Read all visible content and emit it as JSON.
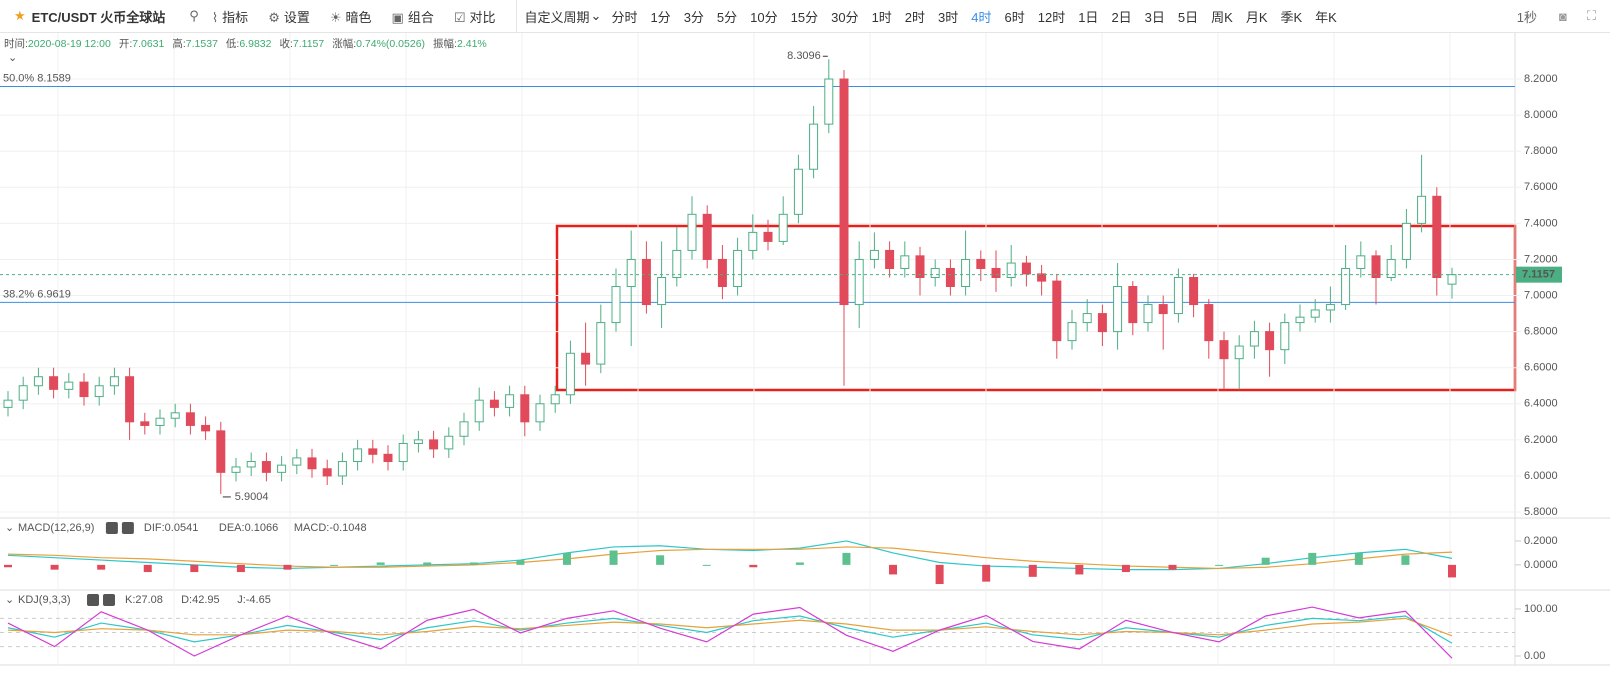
{
  "toolbar": {
    "symbol": "ETC/USDT 火币全球站",
    "tools": [
      "指标",
      "设置",
      "暗色",
      "组合",
      "对比"
    ],
    "custom": "自定义周期",
    "periods": [
      "分时",
      "1分",
      "3分",
      "5分",
      "10分",
      "15分",
      "30分",
      "1时",
      "2时",
      "3时",
      "4时",
      "6时",
      "12时",
      "1日",
      "2日",
      "3日",
      "5日",
      "周K",
      "月K",
      "季K",
      "年K"
    ],
    "active_period": 10,
    "refresh": "1秒"
  },
  "info": [
    {
      "label": "时间:",
      "value": "2020-08-19 12:00"
    },
    {
      "label": "开:",
      "value": "7.0631"
    },
    {
      "label": "高:",
      "value": "7.1537"
    },
    {
      "label": "低:",
      "value": "6.9832"
    },
    {
      "label": "收:",
      "value": "7.1157"
    },
    {
      "label": "涨幅:",
      "value": "0.74%(0.0526)"
    },
    {
      "label": "振幅:",
      "value": "2.41%"
    }
  ],
  "chart_data": [
    {
      "type": "candlestick",
      "up_color": "#4caf84",
      "down_color": "#e04a5a",
      "ylim": [
        5.767,
        8.444
      ],
      "yticks": [
        {
          "value": 5.8,
          "label": "5.8000"
        },
        {
          "value": 6.0,
          "label": "6.0000"
        },
        {
          "value": 6.2,
          "label": "6.2000"
        },
        {
          "value": 6.4,
          "label": "6.4000"
        },
        {
          "value": 6.6,
          "label": "6.6000"
        },
        {
          "value": 6.8,
          "label": "6.8000"
        },
        {
          "value": 7.0,
          "label": "7.0000"
        },
        {
          "value": 7.2,
          "label": "7.2000"
        },
        {
          "value": 7.4,
          "label": "7.4000"
        },
        {
          "value": 7.6,
          "label": "7.6000"
        },
        {
          "value": 7.8,
          "label": "7.8000"
        },
        {
          "value": 8.0,
          "label": "8.0000"
        },
        {
          "value": 8.2,
          "label": "8.2000"
        }
      ],
      "grid": true,
      "levels": [
        {
          "label": "50.0% 8.1589",
          "value": 8.1589,
          "color": "#3a8ee6"
        },
        {
          "label": "38.2% 6.9619",
          "value": 6.9619,
          "color": "#3a8ee6"
        }
      ],
      "open": [
        6.38,
        6.42,
        6.5,
        6.55,
        6.48,
        6.52,
        6.44,
        6.5,
        6.55,
        6.3,
        6.28,
        6.32,
        6.35,
        6.28,
        6.25,
        6.02,
        6.05,
        6.08,
        6.02,
        6.06,
        6.1,
        6.04,
        6.0,
        6.08,
        6.15,
        6.12,
        6.08,
        6.18,
        6.2,
        6.15,
        6.22,
        6.3,
        6.42,
        6.38,
        6.45,
        6.3,
        6.4,
        6.45,
        6.68,
        6.62,
        6.85,
        7.05,
        7.2,
        6.95,
        7.1,
        7.25,
        7.45,
        7.2,
        7.05,
        7.25,
        7.35,
        7.3,
        7.45,
        7.7,
        7.95,
        8.2,
        6.95,
        7.2,
        7.25,
        7.15,
        7.22,
        7.1,
        7.15,
        7.05,
        7.2,
        7.15,
        7.1,
        7.18,
        7.12,
        7.08,
        6.75,
        6.85,
        6.9,
        6.8,
        7.05,
        6.85,
        6.95,
        6.9,
        7.1,
        6.95,
        6.75,
        6.65,
        6.72,
        6.8,
        6.7,
        6.85,
        6.88,
        6.92,
        6.95,
        7.15,
        7.22,
        7.1,
        7.2,
        7.4,
        7.55,
        7.0631
      ],
      "high": [
        6.47,
        6.55,
        6.6,
        6.6,
        6.57,
        6.57,
        6.55,
        6.6,
        6.6,
        6.35,
        6.37,
        6.4,
        6.4,
        6.33,
        6.3,
        6.1,
        6.13,
        6.13,
        6.11,
        6.15,
        6.15,
        6.09,
        6.13,
        6.2,
        6.2,
        6.17,
        6.23,
        6.25,
        6.25,
        6.27,
        6.35,
        6.49,
        6.47,
        6.5,
        6.5,
        6.45,
        6.5,
        6.75,
        6.85,
        6.95,
        7.15,
        7.36,
        7.3,
        7.3,
        7.38,
        7.55,
        7.5,
        7.28,
        7.32,
        7.45,
        7.42,
        7.55,
        7.78,
        8.05,
        8.3096,
        8.25,
        7.3,
        7.35,
        7.3,
        7.3,
        7.27,
        7.2,
        7.2,
        7.36,
        7.25,
        7.25,
        7.28,
        7.22,
        7.17,
        7.12,
        6.92,
        6.98,
        6.95,
        7.18,
        7.08,
        7.0,
        7.0,
        7.15,
        7.12,
        6.98,
        6.8,
        6.78,
        6.86,
        6.85,
        6.9,
        6.95,
        6.98,
        7.05,
        7.28,
        7.3,
        7.25,
        7.28,
        7.48,
        7.78,
        7.6,
        7.1537
      ],
      "low": [
        6.33,
        6.37,
        6.45,
        6.43,
        6.43,
        6.39,
        6.39,
        6.45,
        6.2,
        6.23,
        6.23,
        6.27,
        6.23,
        6.2,
        5.9004,
        5.97,
        6.0,
        5.97,
        5.97,
        6.01,
        5.99,
        5.95,
        5.95,
        6.03,
        6.07,
        6.03,
        6.03,
        6.13,
        6.1,
        6.1,
        6.17,
        6.25,
        6.33,
        6.33,
        6.22,
        6.25,
        6.35,
        6.4,
        6.5,
        6.57,
        6.8,
        6.72,
        6.9,
        6.82,
        7.05,
        7.2,
        7.15,
        6.98,
        7.0,
        7.2,
        7.25,
        7.28,
        7.4,
        7.65,
        7.9,
        6.5,
        6.82,
        7.15,
        7.1,
        7.1,
        7.0,
        7.05,
        7.0,
        7.0,
        7.08,
        7.02,
        7.05,
        7.05,
        7.0,
        6.65,
        6.7,
        6.8,
        6.72,
        6.7,
        6.78,
        6.8,
        6.7,
        6.85,
        6.88,
        6.65,
        6.48,
        6.48,
        6.65,
        6.55,
        6.62,
        6.8,
        6.85,
        6.85,
        6.92,
        7.1,
        6.95,
        7.08,
        7.15,
        7.35,
        7.0,
        6.9832
      ],
      "close": [
        6.42,
        6.5,
        6.55,
        6.48,
        6.52,
        6.44,
        6.5,
        6.55,
        6.3,
        6.28,
        6.32,
        6.35,
        6.28,
        6.25,
        6.02,
        6.05,
        6.08,
        6.02,
        6.06,
        6.1,
        6.04,
        6.0,
        6.08,
        6.15,
        6.12,
        6.08,
        6.18,
        6.2,
        6.15,
        6.22,
        6.3,
        6.42,
        6.38,
        6.45,
        6.3,
        6.4,
        6.45,
        6.68,
        6.62,
        6.85,
        7.05,
        7.2,
        6.95,
        7.1,
        7.25,
        7.45,
        7.2,
        7.05,
        7.25,
        7.35,
        7.3,
        7.45,
        7.7,
        7.95,
        8.2,
        6.95,
        7.2,
        7.25,
        7.15,
        7.22,
        7.1,
        7.15,
        7.05,
        7.2,
        7.15,
        7.1,
        7.18,
        7.12,
        7.08,
        6.75,
        6.85,
        6.9,
        6.8,
        7.05,
        6.85,
        6.95,
        6.9,
        7.1,
        6.95,
        6.75,
        6.65,
        6.72,
        6.8,
        6.7,
        6.85,
        6.88,
        6.92,
        6.95,
        7.15,
        7.22,
        7.1,
        7.2,
        7.4,
        7.55,
        7.1,
        7.1157
      ]
    },
    {
      "type": "macd",
      "title": "MACD(12,26,9)",
      "ylim": [
        -0.21,
        0.375
      ],
      "yticks": [
        {
          "value": 0.0,
          "label": "0.0000"
        },
        {
          "value": 0.2,
          "label": "0.2000"
        }
      ],
      "series": [
        {
          "name": "DIF:0.0541",
          "color": "#2ec7c9",
          "values": [
            0.08,
            0.06,
            0.04,
            0.02,
            0.0,
            -0.02,
            -0.03,
            -0.02,
            -0.01,
            0.0,
            0.01,
            0.04,
            0.1,
            0.15,
            0.16,
            0.13,
            0.12,
            0.14,
            0.2,
            0.1,
            0.02,
            -0.01,
            -0.02,
            -0.03,
            -0.04,
            -0.04,
            -0.03,
            0.01,
            0.06,
            0.1,
            0.13,
            0.0541
          ]
        },
        {
          "name": "DEA:0.1066",
          "color": "#e6a23c",
          "values": [
            0.09,
            0.08,
            0.06,
            0.05,
            0.03,
            0.01,
            -0.01,
            -0.02,
            -0.02,
            -0.01,
            0.0,
            0.02,
            0.05,
            0.09,
            0.12,
            0.13,
            0.13,
            0.13,
            0.15,
            0.14,
            0.1,
            0.06,
            0.03,
            0.01,
            -0.01,
            -0.02,
            -0.03,
            -0.02,
            0.01,
            0.05,
            0.09,
            0.1066
          ]
        },
        {
          "name": "MACD:-0.1048",
          "color": "#e05c8f",
          "style": "bar",
          "values": [
            -0.02,
            -0.04,
            -0.04,
            -0.06,
            -0.06,
            -0.06,
            -0.04,
            0.0,
            0.02,
            0.02,
            0.02,
            0.04,
            0.1,
            0.12,
            0.08,
            0.0,
            -0.02,
            0.02,
            0.1,
            -0.08,
            -0.16,
            -0.14,
            -0.1,
            -0.08,
            -0.06,
            -0.04,
            0.0,
            0.06,
            0.1,
            0.1,
            0.08,
            -0.1048
          ]
        }
      ]
    },
    {
      "type": "line",
      "title": "KDJ(9,3,3)",
      "ylim": [
        -17,
        136
      ],
      "yticks": [
        {
          "value": 0,
          "label": "0.00"
        },
        {
          "value": 100,
          "label": "100.00"
        }
      ],
      "dashed_levels": [
        20,
        50,
        80
      ],
      "series": [
        {
          "name": "K:27.08",
          "color": "#2ec7c9",
          "values": [
            60,
            40,
            70,
            55,
            30,
            45,
            65,
            50,
            35,
            60,
            75,
            55,
            70,
            80,
            65,
            50,
            75,
            85,
            60,
            40,
            55,
            70,
            45,
            35,
            60,
            50,
            40,
            65,
            80,
            75,
            85,
            27.08
          ]
        },
        {
          "name": "D:42.95",
          "color": "#e6a23c",
          "values": [
            55,
            50,
            58,
            55,
            45,
            45,
            55,
            52,
            45,
            52,
            63,
            58,
            65,
            72,
            68,
            60,
            68,
            76,
            68,
            55,
            55,
            62,
            52,
            45,
            52,
            50,
            45,
            55,
            68,
            72,
            80,
            42.95
          ]
        },
        {
          "name": "J:-4.65",
          "color": "#d43bd4",
          "values": [
            70,
            20,
            94,
            55,
            0,
            45,
            85,
            46,
            15,
            76,
            99,
            49,
            80,
            96,
            59,
            30,
            89,
            103,
            44,
            10,
            55,
            86,
            31,
            15,
            76,
            50,
            30,
            85,
            104,
            81,
            95,
            -4.65
          ]
        }
      ]
    }
  ]
}
